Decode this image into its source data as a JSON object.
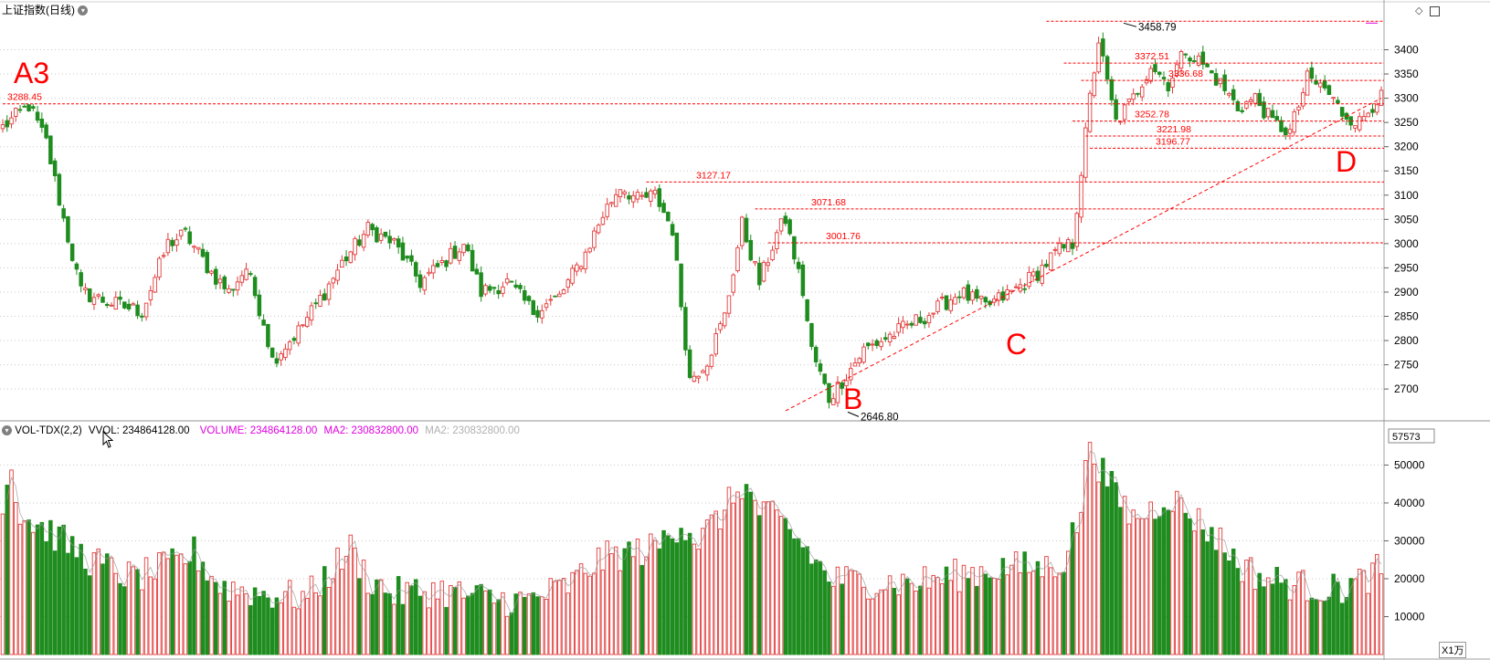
{
  "price_panel": {
    "title": "上证指数(日线)",
    "tags": {
      "a3": "A3",
      "b": "B",
      "c": "C",
      "d": "D"
    }
  },
  "volume_panel": {
    "indicator": "VOL-TDX(2,2)",
    "vvol_label": "VVOL: 234864128.00",
    "volume_label": "VOLUME: 234864128.00",
    "ma2_label": "MA2: 230832800.00",
    "ma2_grey_label": "MA2: 230832800.00",
    "unit_label": "X1万"
  },
  "colors": {
    "up": "#e23b3b",
    "down": "#1e8c1e",
    "marker": "#ff0000",
    "volume_label": "#e000e0",
    "grid": "#c8c8c8"
  },
  "chart_data": [
    {
      "type": "candlestick",
      "title": "上证指数(日线)",
      "y_ticks": [
        2700,
        2750,
        2800,
        2850,
        2900,
        2950,
        3000,
        3050,
        3100,
        3150,
        3200,
        3250,
        3300,
        3350,
        3400
      ],
      "ylim": [
        2640,
        3465
      ],
      "grid": true,
      "levels": [
        "3288.45",
        "3127.17",
        "3071.68",
        "3001.76",
        "3458.79",
        "3372.51",
        "3336.68",
        "3252.78",
        "3221.98",
        "3196.77",
        "2646.80"
      ],
      "trendline": {
        "from": 2655,
        "to": 3300
      },
      "path": [
        [
          0,
          3240
        ],
        [
          6,
          3285
        ],
        [
          10,
          3210
        ],
        [
          14,
          3050
        ],
        [
          18,
          2900
        ],
        [
          24,
          2880
        ],
        [
          32,
          2860
        ],
        [
          38,
          3000
        ],
        [
          42,
          3020
        ],
        [
          48,
          2940
        ],
        [
          52,
          2900
        ],
        [
          56,
          2950
        ],
        [
          60,
          2840
        ],
        [
          62,
          2760
        ],
        [
          68,
          2820
        ],
        [
          74,
          2900
        ],
        [
          78,
          2960
        ],
        [
          84,
          3030
        ],
        [
          90,
          3000
        ],
        [
          96,
          2920
        ],
        [
          100,
          2950
        ],
        [
          106,
          3000
        ],
        [
          110,
          2900
        ],
        [
          116,
          2920
        ],
        [
          122,
          2860
        ],
        [
          128,
          2890
        ],
        [
          134,
          2980
        ],
        [
          138,
          3060
        ],
        [
          142,
          3120
        ],
        [
          146,
          3090
        ],
        [
          150,
          3100
        ],
        [
          154,
          3030
        ],
        [
          158,
          2720
        ],
        [
          162,
          2760
        ],
        [
          166,
          2850
        ],
        [
          170,
          3040
        ],
        [
          174,
          2920
        ],
        [
          178,
          3020
        ],
        [
          180,
          3050
        ],
        [
          184,
          2900
        ],
        [
          186,
          2780
        ],
        [
          190,
          2680
        ],
        [
          194,
          2730
        ],
        [
          198,
          2780
        ],
        [
          202,
          2800
        ],
        [
          208,
          2830
        ],
        [
          214,
          2860
        ],
        [
          220,
          2900
        ],
        [
          226,
          2870
        ],
        [
          232,
          2900
        ],
        [
          238,
          2940
        ],
        [
          242,
          2980
        ],
        [
          246,
          3000
        ],
        [
          248,
          3150
        ],
        [
          250,
          3300
        ],
        [
          252,
          3420
        ],
        [
          254,
          3330
        ],
        [
          256,
          3250
        ],
        [
          260,
          3300
        ],
        [
          264,
          3370
        ],
        [
          268,
          3330
        ],
        [
          272,
          3400
        ],
        [
          276,
          3370
        ],
        [
          280,
          3330
        ],
        [
          284,
          3280
        ],
        [
          288,
          3300
        ],
        [
          292,
          3250
        ],
        [
          296,
          3230
        ],
        [
          300,
          3340
        ],
        [
          304,
          3320
        ],
        [
          308,
          3270
        ],
        [
          312,
          3250
        ],
        [
          316,
          3300
        ]
      ],
      "volume": {
        "y_ticks": [
          10000,
          20000,
          30000,
          40000,
          50000
        ],
        "top_label": "57573",
        "ylim": [
          0,
          57573
        ],
        "path": [
          [
            0,
            40000
          ],
          [
            2,
            50000
          ],
          [
            4,
            37000
          ],
          [
            10,
            33000
          ],
          [
            20,
            25000
          ],
          [
            30,
            20000
          ],
          [
            40,
            24000
          ],
          [
            44,
            27000
          ],
          [
            50,
            18000
          ],
          [
            60,
            16000
          ],
          [
            70,
            15000
          ],
          [
            80,
            28000
          ],
          [
            84,
            20000
          ],
          [
            90,
            16000
          ],
          [
            100,
            17000
          ],
          [
            110,
            15000
          ],
          [
            120,
            14000
          ],
          [
            130,
            18000
          ],
          [
            136,
            24000
          ],
          [
            140,
            26000
          ],
          [
            150,
            28000
          ],
          [
            156,
            35000
          ],
          [
            160,
            30000
          ],
          [
            166,
            38000
          ],
          [
            170,
            45000
          ],
          [
            174,
            38000
          ],
          [
            180,
            34000
          ],
          [
            186,
            26000
          ],
          [
            190,
            20000
          ],
          [
            200,
            19000
          ],
          [
            210,
            19000
          ],
          [
            220,
            21000
          ],
          [
            230,
            23000
          ],
          [
            240,
            23000
          ],
          [
            244,
            25000
          ],
          [
            248,
            38000
          ],
          [
            250,
            57573
          ],
          [
            252,
            50000
          ],
          [
            256,
            42000
          ],
          [
            260,
            36000
          ],
          [
            264,
            38000
          ],
          [
            268,
            42000
          ],
          [
            272,
            38000
          ],
          [
            276,
            34000
          ],
          [
            280,
            30000
          ],
          [
            284,
            24000
          ],
          [
            290,
            20000
          ],
          [
            300,
            18000
          ],
          [
            306,
            17000
          ],
          [
            312,
            19000
          ],
          [
            316,
            22000
          ]
        ]
      }
    }
  ]
}
